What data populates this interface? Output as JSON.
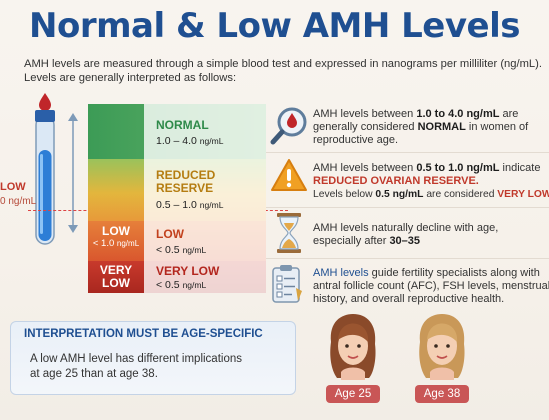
{
  "title": "Normal & Low AMH Levels",
  "intro": {
    "line1": "AMH levels are measured through a simple blood test and expressed in nanograms per milliliter (ng/mL).",
    "line2": "Levels are generally interpreted as follows:"
  },
  "side_marker": {
    "label": "LOW",
    "value": "0 ng/mL"
  },
  "scale": [
    {
      "name": "NORMAL",
      "range": "1.0 – 4.0",
      "unit": "ng/mL"
    },
    {
      "name_line1": "REDUCED",
      "name_line2": "RESERVE",
      "range": "0.5 – 1.0",
      "unit": "ng/mL"
    },
    {
      "left_label": "LOW",
      "left_value": "< 1.0",
      "left_unit": "ng/mL",
      "name": "LOW",
      "range": "< 0.5",
      "unit": "ng/mL"
    },
    {
      "left_label_1": "VERY",
      "left_label_2": "LOW",
      "name": "VERY LOW",
      "range": "< 0.5",
      "unit": "ng/mL"
    }
  ],
  "rows": [
    {
      "a": "AMH levels between ",
      "b": "1.0 to 4.0 ng/mL",
      "c": " are",
      "d": "generally considered ",
      "e": "NORMAL",
      "f": " in women of",
      "g": "reproductive age."
    },
    {
      "a": "AMH levels between ",
      "b": "0.5 to 1.0 ng/mL",
      "c": " indicate",
      "d": "REDUCED OVARIAN RESERVE.",
      "e": "Levels below ",
      "f": "0.5 ng/mL",
      "g": " are considered ",
      "h": "VERY LOW."
    },
    {
      "a": "AMH levels naturally decline with age,",
      "b": "especially after ",
      "c": "30–35"
    },
    {
      "a": "AMH levels",
      "b": " guide fertility specialists along with",
      "c": "antral follicle count (AFC), FSH levels, menstrual",
      "d": "history, and overall reproductive health."
    }
  ],
  "box": {
    "title": "INTERPRETATION MUST BE AGE-SPECIFIC",
    "line1": "A low AMH level has different implications",
    "line2": "at age 25 than at age 38."
  },
  "ages": [
    "Age 25",
    "Age 38"
  ],
  "colors": {
    "title": "#1f4f91",
    "accent_red": "#c0392b",
    "normal_green": "#3c9b56"
  }
}
